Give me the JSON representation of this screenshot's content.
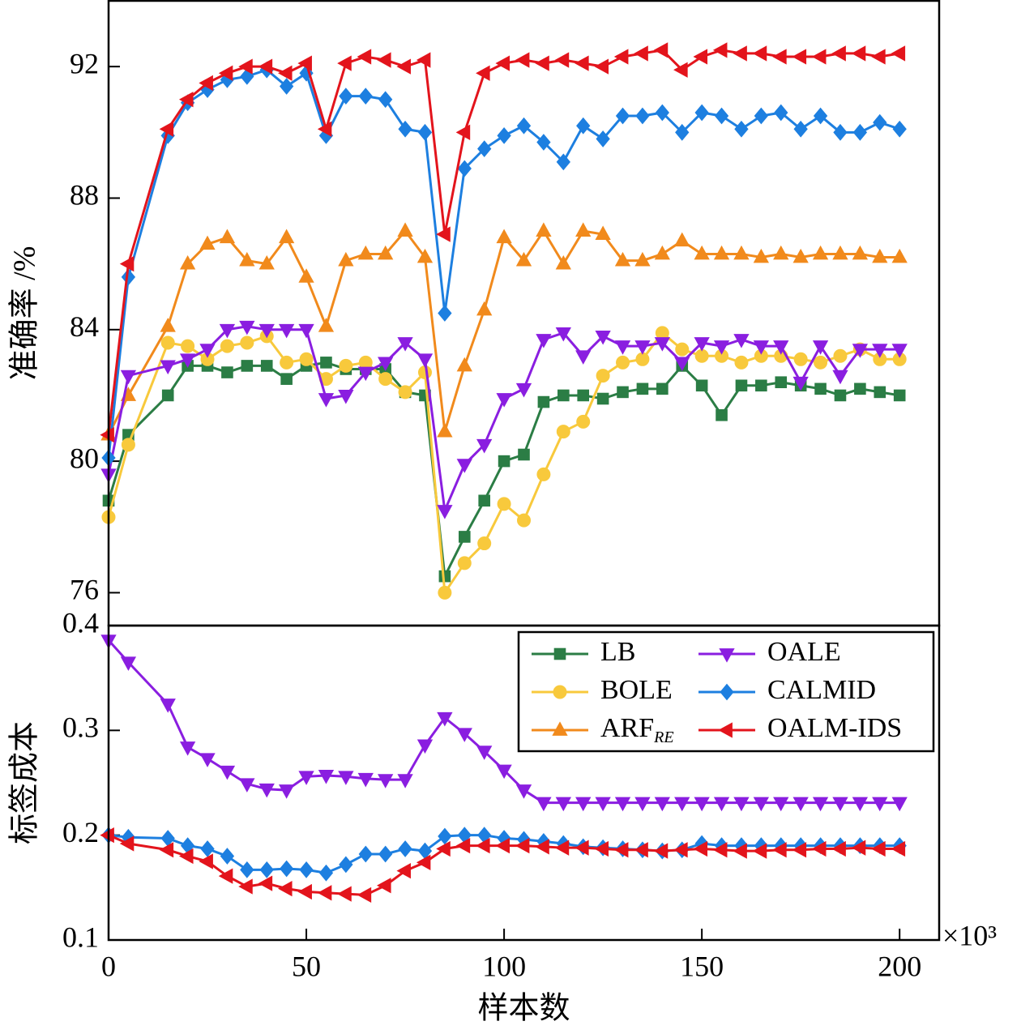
{
  "chart_data": [
    {
      "type": "line",
      "ylabel": "准确率 /%",
      "x": [
        0,
        5,
        15,
        20,
        25,
        30,
        35,
        40,
        45,
        50,
        55,
        60,
        65,
        70,
        75,
        80,
        85,
        90,
        95,
        100,
        105,
        110,
        115,
        120,
        125,
        130,
        135,
        140,
        145,
        150,
        155,
        160,
        165,
        170,
        175,
        180,
        185,
        190,
        195,
        200
      ],
      "xlim": [
        0,
        210
      ],
      "ylim": [
        75,
        94
      ],
      "yticks": [
        76,
        80,
        84,
        88,
        92
      ],
      "series": [
        {
          "name": "LB",
          "color": "#2b7d45",
          "marker": "square",
          "values": [
            78.8,
            80.8,
            82.0,
            82.9,
            82.9,
            82.7,
            82.9,
            82.9,
            82.5,
            82.9,
            83.0,
            82.8,
            82.8,
            82.8,
            82.1,
            82.0,
            76.5,
            77.7,
            78.8,
            80.0,
            80.2,
            81.8,
            82.0,
            82.0,
            81.9,
            82.1,
            82.2,
            82.2,
            82.9,
            82.3,
            81.4,
            82.3,
            82.3,
            82.4,
            82.3,
            82.2,
            82.0,
            82.2,
            82.1,
            82.0
          ]
        },
        {
          "name": "BOLE",
          "color": "#f8c93c",
          "marker": "circle",
          "values": [
            78.3,
            80.5,
            83.6,
            83.5,
            83.1,
            83.5,
            83.6,
            83.8,
            83.0,
            83.1,
            82.5,
            82.9,
            83.0,
            82.5,
            82.1,
            82.7,
            76.0,
            76.9,
            77.5,
            78.7,
            78.2,
            79.6,
            80.9,
            81.2,
            82.6,
            83.0,
            83.1,
            83.9,
            83.4,
            83.2,
            83.2,
            83.0,
            83.2,
            83.2,
            83.1,
            83.0,
            83.2,
            83.4,
            83.1,
            83.1
          ]
        },
        {
          "name": "ARF",
          "subscript": "RE",
          "color": "#f18a1c",
          "marker": "triangle-up",
          "values": [
            80.8,
            82.0,
            84.1,
            86.0,
            86.6,
            86.8,
            86.1,
            86.0,
            86.8,
            85.6,
            84.1,
            86.1,
            86.3,
            86.3,
            87.0,
            86.2,
            80.9,
            82.9,
            84.6,
            86.8,
            86.1,
            87.0,
            86.0,
            87.0,
            86.9,
            86.1,
            86.1,
            86.3,
            86.7,
            86.3,
            86.3,
            86.3,
            86.2,
            86.3,
            86.2,
            86.3,
            86.3,
            86.3,
            86.2,
            86.2
          ]
        },
        {
          "name": "OALE",
          "color": "#8a1ee0",
          "marker": "triangle-down",
          "values": [
            79.6,
            82.6,
            82.9,
            83.1,
            83.4,
            84.0,
            84.1,
            84.0,
            84.0,
            84.0,
            81.9,
            82.0,
            82.7,
            83.0,
            83.6,
            83.1,
            78.5,
            79.9,
            80.5,
            81.9,
            82.2,
            83.7,
            83.9,
            83.2,
            83.8,
            83.5,
            83.5,
            83.6,
            83.0,
            83.6,
            83.5,
            83.7,
            83.5,
            83.5,
            82.4,
            83.5,
            82.6,
            83.4,
            83.4,
            83.4
          ]
        },
        {
          "name": "CALMID",
          "color": "#1d7fe0",
          "marker": "diamond",
          "values": [
            80.1,
            85.6,
            89.9,
            90.9,
            91.3,
            91.6,
            91.7,
            91.9,
            91.4,
            91.8,
            89.9,
            91.1,
            91.1,
            91.0,
            90.1,
            90.0,
            84.5,
            88.9,
            89.5,
            89.9,
            90.2,
            89.7,
            89.1,
            90.2,
            89.8,
            90.5,
            90.5,
            90.6,
            90.0,
            90.6,
            90.5,
            90.1,
            90.5,
            90.6,
            90.1,
            90.5,
            90.0,
            90.0,
            90.3,
            90.1
          ]
        },
        {
          "name": "OALM-IDS",
          "color": "#e3141c",
          "marker": "triangle-left",
          "values": [
            80.8,
            86.0,
            90.1,
            91.0,
            91.5,
            91.8,
            92.0,
            92.0,
            91.8,
            92.1,
            90.1,
            92.1,
            92.3,
            92.2,
            92.0,
            92.2,
            86.9,
            90.0,
            91.8,
            92.1,
            92.2,
            92.1,
            92.2,
            92.1,
            92.0,
            92.3,
            92.4,
            92.5,
            91.9,
            92.3,
            92.5,
            92.4,
            92.4,
            92.3,
            92.3,
            92.3,
            92.4,
            92.4,
            92.3,
            92.4
          ]
        }
      ]
    },
    {
      "type": "line",
      "ylabel": "标签成本",
      "xlabel": "样本数",
      "x_multiplier": "×10³",
      "legend": "upper right",
      "x": [
        0,
        5,
        15,
        20,
        25,
        30,
        35,
        40,
        45,
        50,
        55,
        60,
        65,
        70,
        75,
        80,
        85,
        90,
        95,
        100,
        105,
        110,
        115,
        120,
        125,
        130,
        135,
        140,
        145,
        150,
        155,
        160,
        165,
        170,
        175,
        180,
        185,
        190,
        195,
        200
      ],
      "xlim": [
        0,
        210
      ],
      "xticks": [
        0,
        50,
        100,
        150,
        200
      ],
      "ylim": [
        0.1,
        0.4
      ],
      "yticks": [
        0.1,
        0.2,
        0.3,
        0.4
      ],
      "series": [
        {
          "name": "OALE",
          "color": "#8a1ee0",
          "marker": "triangle-down",
          "values": [
            0.386,
            0.365,
            0.325,
            0.284,
            0.273,
            0.261,
            0.249,
            0.244,
            0.243,
            0.256,
            0.257,
            0.256,
            0.254,
            0.253,
            0.253,
            0.286,
            0.312,
            0.297,
            0.28,
            0.262,
            0.243,
            0.231,
            0.231,
            0.231,
            0.231,
            0.231,
            0.231,
            0.231,
            0.231,
            0.231,
            0.231,
            0.231,
            0.231,
            0.231,
            0.231,
            0.231,
            0.231,
            0.231,
            0.231,
            0.231
          ]
        },
        {
          "name": "CALMID",
          "color": "#1d7fe0",
          "marker": "diamond",
          "values": [
            0.2,
            0.198,
            0.197,
            0.19,
            0.187,
            0.18,
            0.167,
            0.167,
            0.168,
            0.167,
            0.164,
            0.172,
            0.182,
            0.182,
            0.187,
            0.185,
            0.199,
            0.2,
            0.2,
            0.197,
            0.196,
            0.194,
            0.192,
            0.189,
            0.188,
            0.187,
            0.186,
            0.185,
            0.186,
            0.192,
            0.19,
            0.19,
            0.19,
            0.19,
            0.19,
            0.19,
            0.19,
            0.19,
            0.19,
            0.19
          ]
        },
        {
          "name": "OALM-IDS",
          "color": "#e3141c",
          "marker": "triangle-left",
          "values": [
            0.2,
            0.192,
            0.186,
            0.18,
            0.175,
            0.161,
            0.151,
            0.154,
            0.149,
            0.146,
            0.145,
            0.144,
            0.143,
            0.152,
            0.166,
            0.174,
            0.187,
            0.19,
            0.19,
            0.19,
            0.19,
            0.189,
            0.188,
            0.188,
            0.187,
            0.186,
            0.186,
            0.185,
            0.186,
            0.187,
            0.186,
            0.185,
            0.185,
            0.186,
            0.186,
            0.187,
            0.187,
            0.188,
            0.187,
            0.187
          ]
        }
      ]
    }
  ]
}
